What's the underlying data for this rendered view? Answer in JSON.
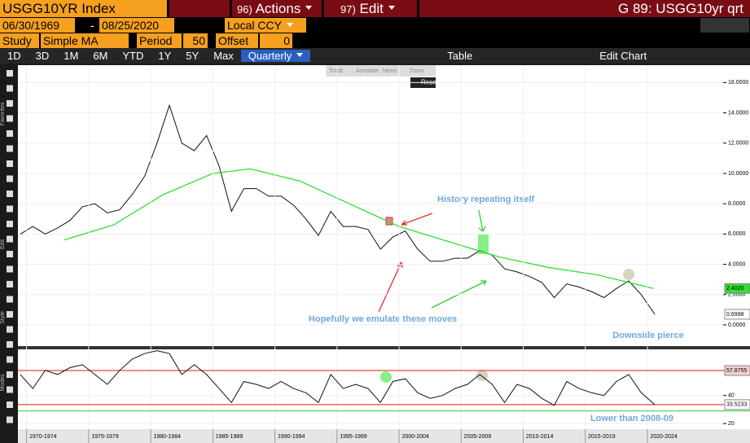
{
  "ui": {
    "ticker": "USGG10YR Index",
    "actions_num": "96)",
    "actions": "Actions",
    "edit_num": "97)",
    "edit": "Edit",
    "chart_name": "G 89: USGG10yr qrt",
    "start_date": "06/30/1969",
    "dash": "-",
    "end_date": "08/25/2020",
    "currency": "Local CCY",
    "study_label": "Study",
    "study": "Simple MA",
    "period_label": "Period",
    "period": "50",
    "offset_label": "Offset",
    "offset": "0",
    "periods": [
      "1D",
      "3D",
      "1M",
      "6M",
      "YTD",
      "1Y",
      "5Y",
      "Max"
    ],
    "frequency": "Quarterly",
    "table": "Table",
    "edit_chart": "Edit Chart",
    "tools": [
      "Track",
      "Annotate",
      "News",
      "Zoom"
    ],
    "reset": "Reset",
    "side_labels": [
      "Favorites",
      "Edit",
      "Style",
      "Modes"
    ]
  },
  "chart_data": [
    {
      "type": "line",
      "xlim": [
        1969.3,
        2026.1
      ],
      "ylim": [
        -1.4,
        17.15
      ],
      "yticks": [
        {
          "value": 0,
          "label": "0.0000"
        },
        {
          "value": 2,
          "label": "2.0000"
        },
        {
          "value": 4,
          "label": "4.0000"
        },
        {
          "value": 6,
          "label": "6.0000"
        },
        {
          "value": 8,
          "label": "8.0000"
        },
        {
          "value": 10,
          "label": "10.0000"
        },
        {
          "value": 12,
          "label": "12.0000"
        },
        {
          "value": 14,
          "label": "14.0000"
        },
        {
          "value": 16,
          "label": "16.0000"
        }
      ],
      "x": [
        1969.5,
        1970.5,
        1971.5,
        1972.5,
        1973.5,
        1974.5,
        1975.5,
        1976.5,
        1977.5,
        1978.5,
        1979.5,
        1980.5,
        1981.5,
        1982.5,
        1983.5,
        1984.5,
        1985.5,
        1986.5,
        1987.5,
        1988.5,
        1989.5,
        1990.5,
        1991.5,
        1992.5,
        1993.5,
        1994.5,
        1995.5,
        1996.5,
        1997.5,
        1998.5,
        1999.5,
        2000.5,
        2001.5,
        2002.5,
        2003.5,
        2004.5,
        2005.5,
        2006.5,
        2007.5,
        2008.5,
        2009.5,
        2010.5,
        2011.5,
        2012.5,
        2013.5,
        2014.5,
        2015.5,
        2016.5,
        2017.5,
        2018.5,
        2019.5,
        2020.6
      ],
      "series": [
        {
          "name": "USGG10YR",
          "color": "#111111",
          "values": [
            6.0,
            6.5,
            6.0,
            6.4,
            6.9,
            7.8,
            8.0,
            7.4,
            7.6,
            8.6,
            9.8,
            12.0,
            14.5,
            12.0,
            11.5,
            12.5,
            10.5,
            7.5,
            9.0,
            9.0,
            8.5,
            8.5,
            7.9,
            7.0,
            5.9,
            7.5,
            6.5,
            6.5,
            6.3,
            5.0,
            5.8,
            6.2,
            5.0,
            4.2,
            4.2,
            4.4,
            4.4,
            4.9,
            4.6,
            3.7,
            3.5,
            3.2,
            2.8,
            1.8,
            2.7,
            2.5,
            2.2,
            1.8,
            2.4,
            2.9,
            2.0,
            0.6998
          ],
          "tag": {
            "value": 0.6998,
            "label": "0.6998"
          }
        },
        {
          "name": "SMA 50",
          "color": "#33dd33",
          "x": [
            1973,
            1977,
            1981,
            1985,
            1988,
            1992,
            1996,
            2000,
            2004,
            2008,
            2012,
            2016,
            2020.5
          ],
          "values": [
            5.6,
            6.6,
            8.6,
            10.0,
            10.3,
            9.5,
            8.0,
            6.5,
            5.5,
            4.5,
            3.8,
            3.3,
            2.402
          ],
          "tag": {
            "value": 2.402,
            "label": "2.4020"
          }
        }
      ],
      "annotations": [
        "History repeating itself",
        "Hopefully we emulate these moves",
        "Downside pierce"
      ]
    },
    {
      "type": "line",
      "xlim": [
        1969.3,
        2026.1
      ],
      "ylim": [
        16,
        73
      ],
      "yticks": [
        20,
        40
      ],
      "xticks": [
        {
          "value": 1970,
          "label": "1970-1974"
        },
        {
          "value": 1975,
          "label": "1975-1979"
        },
        {
          "value": 1980,
          "label": "1980-1984"
        },
        {
          "value": 1985,
          "label": "1985-1989"
        },
        {
          "value": 1990,
          "label": "1990-1994"
        },
        {
          "value": 1995,
          "label": "1995-1999"
        },
        {
          "value": 2000,
          "label": "2000-2004"
        },
        {
          "value": 2005,
          "label": "2005-2009"
        },
        {
          "value": 2010,
          "label": "2010-2014"
        },
        {
          "value": 2015,
          "label": "2015-2019"
        },
        {
          "value": 2020,
          "label": "2020-2024"
        }
      ],
      "x": [
        1969.5,
        1970.5,
        1971.5,
        1972.5,
        1973.5,
        1974.5,
        1975.5,
        1976.5,
        1977.5,
        1978.5,
        1979.5,
        1980.5,
        1981.5,
        1982.5,
        1983.5,
        1984.5,
        1985.5,
        1986.5,
        1987.5,
        1988.5,
        1989.5,
        1990.5,
        1991.5,
        1992.5,
        1993.5,
        1994.5,
        1995.5,
        1996.5,
        1997.5,
        1998.5,
        1999.5,
        2000.5,
        2001.5,
        2002.5,
        2003.5,
        2004.5,
        2005.5,
        2006.5,
        2007.5,
        2008.5,
        2009.5,
        2010.5,
        2011.5,
        2012.5,
        2013.5,
        2014.5,
        2015.5,
        2016.5,
        2017.5,
        2018.5,
        2019.5,
        2020.6
      ],
      "series": [
        {
          "name": "RSI",
          "color": "#111111",
          "values": [
            55,
            45,
            58,
            55,
            60,
            62,
            55,
            48,
            58,
            66,
            70,
            72,
            70,
            55,
            62,
            55,
            45,
            35,
            50,
            48,
            45,
            50,
            45,
            42,
            35,
            55,
            45,
            48,
            45,
            35,
            50,
            52,
            42,
            38,
            40,
            45,
            48,
            55,
            48,
            35,
            48,
            45,
            38,
            33,
            50,
            45,
            42,
            40,
            50,
            55,
            42,
            33.5233
          ]
        }
      ],
      "reference_lines": [
        {
          "value": 57.8755,
          "label": "57.8755",
          "color": "#e01818"
        },
        {
          "value": 33.5233,
          "label": "33.5233",
          "color": "#e01818"
        },
        {
          "value": 29,
          "color": "#33cc33"
        }
      ],
      "annotations": [
        "Lower than 2008-09"
      ]
    }
  ]
}
